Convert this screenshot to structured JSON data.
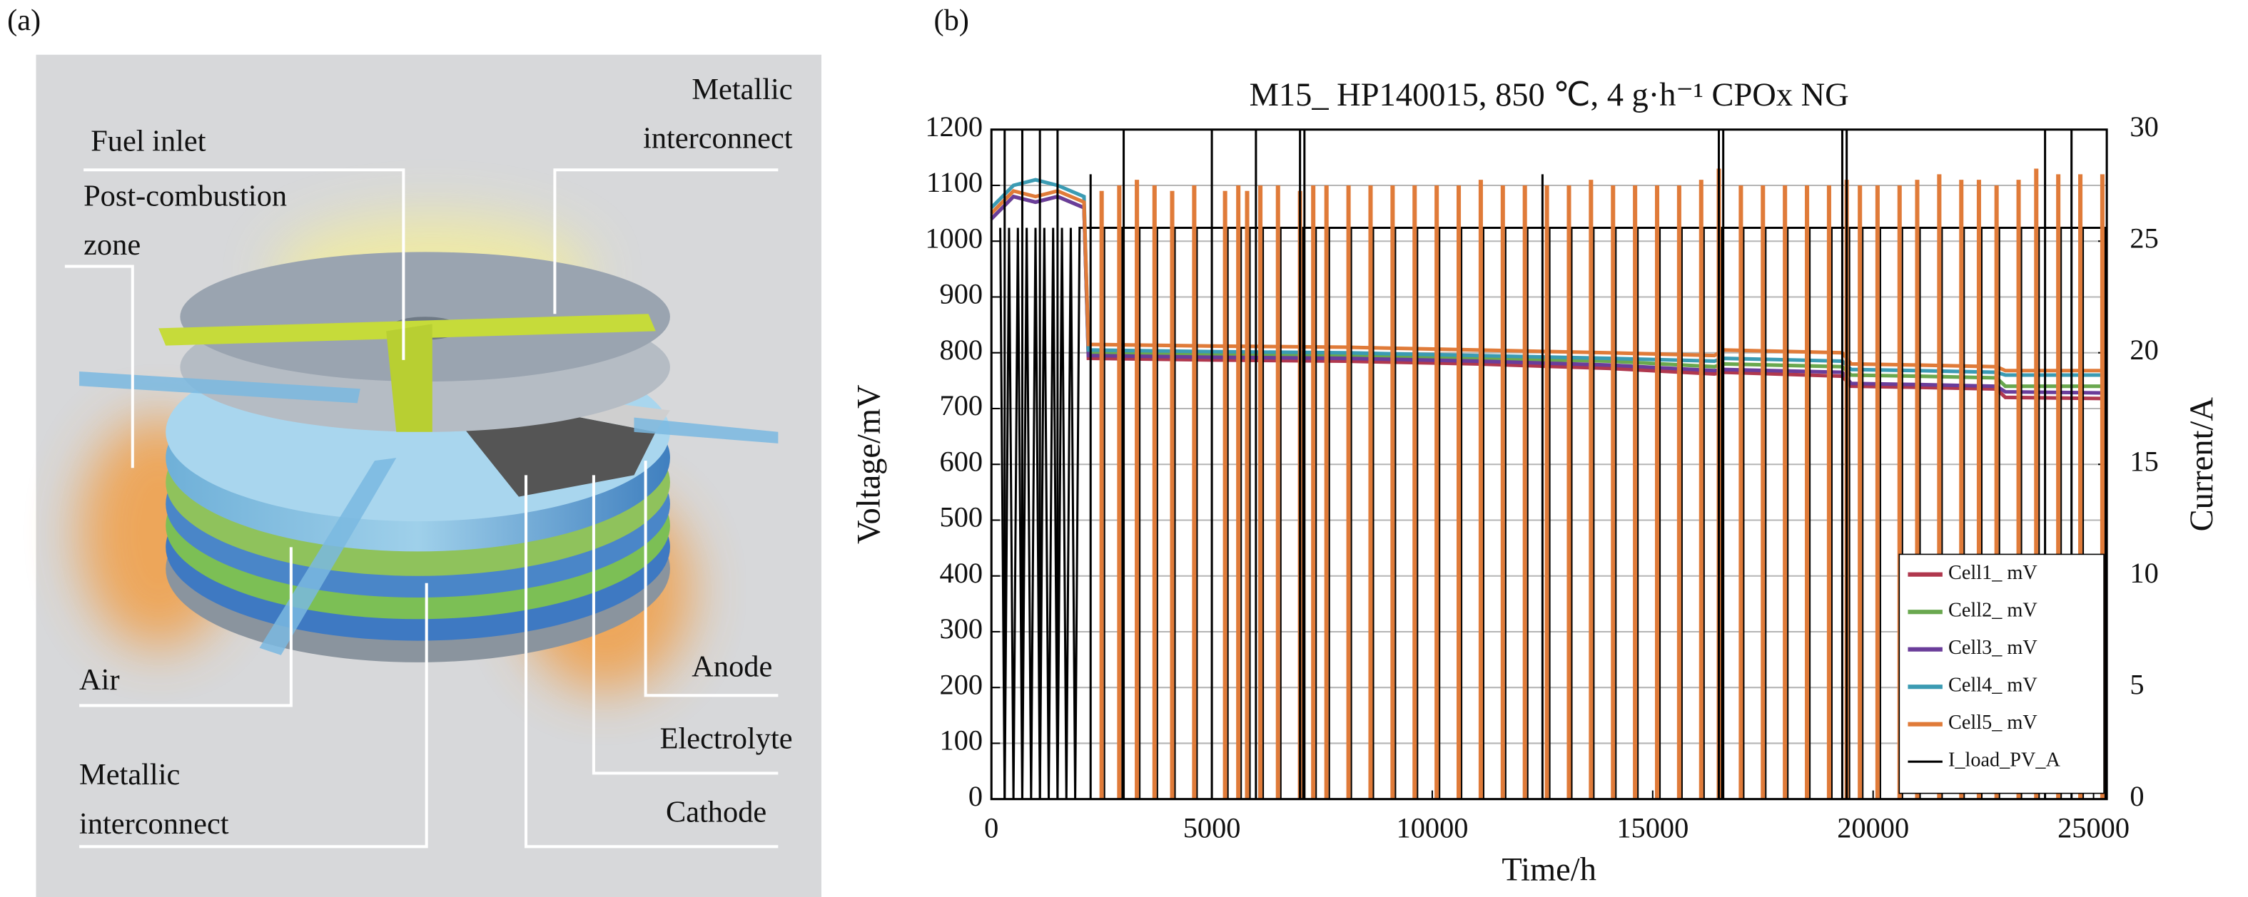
{
  "diagram": {
    "panel_label": "(a)",
    "labels": [
      {
        "lines": [
          "Fuel inlet"
        ]
      },
      {
        "lines": [
          "Post-combustion",
          "zone"
        ]
      },
      {
        "lines": [
          "Metallic",
          "interconnect"
        ]
      },
      {
        "lines": [
          "Air"
        ]
      },
      {
        "lines": [
          "Anode"
        ]
      },
      {
        "lines": [
          "Electrolyte"
        ]
      },
      {
        "lines": [
          "Metallic",
          "interconnect"
        ]
      },
      {
        "lines": [
          "Cathode"
        ]
      }
    ]
  },
  "chart_data": {
    "type": "line",
    "panel_label": "(b)",
    "title": "M15_ HP140015, 850 ℃, 4 g·h⁻¹ CPOx NG",
    "x_label": "Time/h",
    "y_label": "Voltage/mV",
    "y2_label": "Current/A",
    "xlim": [
      0,
      25300
    ],
    "xticks": [
      0,
      5000,
      10000,
      15000,
      20000,
      25000
    ],
    "ylim": [
      0,
      1200
    ],
    "yticks": [
      0,
      100,
      200,
      300,
      400,
      500,
      600,
      700,
      800,
      900,
      1000,
      1100,
      1200
    ],
    "y2lim": [
      0,
      30
    ],
    "y2ticks": [
      0,
      5,
      10,
      15,
      20,
      25,
      30
    ],
    "grid": true,
    "legend": "lower right",
    "x": [
      0,
      500,
      1000,
      1500,
      2100,
      2200,
      5000,
      8000,
      11000,
      14000,
      16400,
      16600,
      19300,
      19500,
      21000,
      22800,
      23000,
      25200
    ],
    "series": [
      {
        "name": "Cell1_ mV",
        "color": "#b0384e",
        "values": [
          1040,
          1080,
          1070,
          1080,
          1060,
          790,
          787,
          785,
          780,
          772,
          762,
          765,
          758,
          740,
          738,
          735,
          720,
          718
        ]
      },
      {
        "name": "Cell2_ mV",
        "color": "#6aa84f",
        "values": [
          1040,
          1080,
          1070,
          1080,
          1060,
          800,
          797,
          795,
          790,
          785,
          775,
          780,
          775,
          760,
          758,
          755,
          740,
          740
        ]
      },
      {
        "name": "Cell3_ mV",
        "color": "#6a3d9a",
        "values": [
          1040,
          1080,
          1070,
          1080,
          1060,
          795,
          792,
          790,
          785,
          778,
          768,
          770,
          765,
          745,
          743,
          740,
          730,
          728
        ]
      },
      {
        "name": "Cell4_ mV",
        "color": "#3b9bb3",
        "values": [
          1060,
          1100,
          1110,
          1100,
          1080,
          805,
          802,
          800,
          795,
          790,
          785,
          790,
          785,
          770,
          768,
          765,
          760,
          760
        ]
      },
      {
        "name": "Cell5_ mV",
        "color": "#e07b39",
        "values": [
          1050,
          1090,
          1080,
          1090,
          1070,
          815,
          812,
          810,
          805,
          800,
          795,
          805,
          800,
          780,
          778,
          775,
          768,
          768
        ]
      }
    ],
    "spikes": {
      "color": "#e07b39",
      "x": [
        2500,
        2900,
        3300,
        3700,
        4100,
        4600,
        5300,
        5600,
        5800,
        6100,
        6500,
        7000,
        7300,
        7600,
        8100,
        8600,
        9100,
        9600,
        10100,
        10600,
        11100,
        11600,
        12100,
        12600,
        13100,
        13600,
        14100,
        14600,
        15100,
        15600,
        16100,
        16500,
        17000,
        17500,
        18000,
        18500,
        19000,
        19400,
        19700,
        20100,
        20600,
        21000,
        21500,
        22000,
        22400,
        22800,
        23300,
        23700,
        24200,
        24700,
        25200
      ],
      "values": [
        1090,
        1100,
        1110,
        1100,
        1090,
        1100,
        1090,
        1100,
        1090,
        1100,
        1100,
        1090,
        1100,
        1100,
        1100,
        1100,
        1100,
        1100,
        1100,
        1100,
        1110,
        1100,
        1100,
        1100,
        1100,
        1110,
        1100,
        1100,
        1100,
        1100,
        1110,
        1130,
        1100,
        1100,
        1100,
        1100,
        1100,
        1110,
        1100,
        1100,
        1100,
        1110,
        1120,
        1110,
        1110,
        1100,
        1110,
        1130,
        1120,
        1120,
        1120
      ]
    },
    "current": {
      "name": "I_load_PV_A",
      "color": "#000000",
      "axis": "y2",
      "x": [
        200,
        300,
        400,
        500,
        600,
        700,
        800,
        900,
        1000,
        1100,
        1200,
        1300,
        1400,
        1500,
        1600,
        1700,
        1800,
        1900,
        2000,
        2100,
        25300
      ],
      "values": [
        25.6,
        0,
        25.6,
        0,
        25.6,
        0,
        25.6,
        0,
        25.6,
        0,
        25.6,
        0,
        25.6,
        0,
        25.6,
        0,
        25.6,
        0,
        25.6,
        25.6,
        25.6
      ]
    },
    "current_spikes": {
      "x": [
        300,
        700,
        1100,
        1500,
        2250,
        3000,
        5000,
        6000,
        7000,
        7100,
        12500,
        16500,
        16600,
        19300,
        19400,
        23900,
        24500
      ],
      "values": [
        30,
        30,
        30,
        30,
        28,
        30,
        30,
        30,
        30,
        30,
        28,
        30,
        30,
        30,
        30,
        30,
        30
      ]
    }
  }
}
